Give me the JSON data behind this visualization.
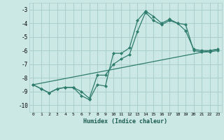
{
  "xlabel": "Humidex (Indice chaleur)",
  "bg_color": "#cce8e4",
  "grid_color": "#aacfca",
  "line_color": "#2e7d6e",
  "xlim": [
    -0.5,
    23.5
  ],
  "ylim": [
    -10.5,
    -2.5
  ],
  "yticks": [
    -10,
    -9,
    -8,
    -7,
    -6,
    -5,
    -4,
    -3
  ],
  "xticks": [
    0,
    1,
    2,
    3,
    4,
    5,
    6,
    7,
    8,
    9,
    10,
    11,
    12,
    13,
    14,
    15,
    16,
    17,
    18,
    19,
    20,
    21,
    22,
    23
  ],
  "line1_x": [
    0,
    1,
    2,
    3,
    4,
    5,
    6,
    7,
    8,
    9,
    10,
    11,
    12,
    13,
    14,
    15,
    16,
    17,
    18,
    19,
    20,
    21,
    22,
    23
  ],
  "line1_y": [
    -8.5,
    -8.8,
    -9.1,
    -8.8,
    -8.7,
    -8.7,
    -9.3,
    -9.6,
    -8.5,
    -8.6,
    -6.2,
    -6.2,
    -5.8,
    -3.8,
    -3.1,
    -3.5,
    -4.0,
    -3.7,
    -4.0,
    -4.1,
    -6.0,
    -6.1,
    -6.1,
    -6.0
  ],
  "line2_x": [
    0,
    1,
    2,
    3,
    4,
    5,
    6,
    7,
    8,
    9,
    10,
    11,
    12,
    13,
    14,
    15,
    16,
    17,
    18,
    19,
    20,
    21,
    22,
    23
  ],
  "line2_y": [
    -8.5,
    -8.8,
    -9.1,
    -8.8,
    -8.7,
    -8.7,
    -9.0,
    -9.5,
    -7.8,
    -7.8,
    -7.0,
    -6.6,
    -6.3,
    -4.6,
    -3.2,
    -3.8,
    -4.1,
    -3.8,
    -4.0,
    -4.55,
    -5.9,
    -6.0,
    -6.0,
    -5.9
  ],
  "line3_x": [
    0,
    23
  ],
  "line3_y": [
    -8.5,
    -5.9
  ],
  "markersize": 2.5,
  "linewidth": 0.9
}
